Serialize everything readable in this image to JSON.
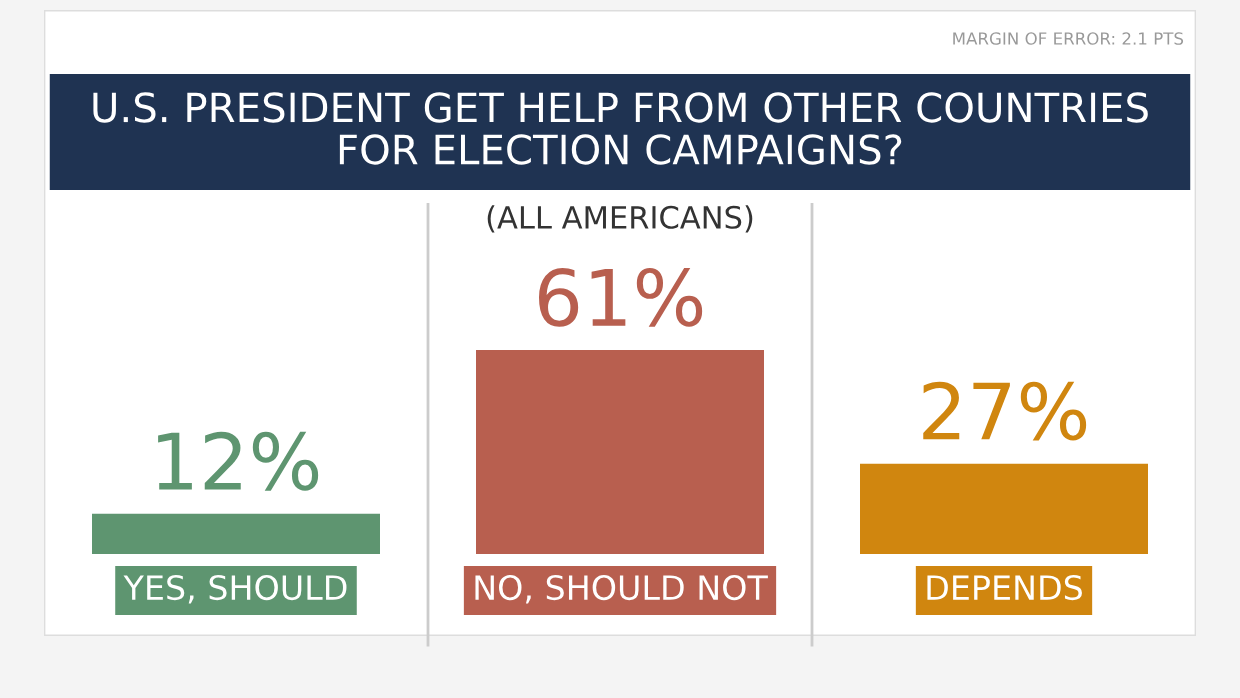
{
  "chart_data": {
    "type": "bar",
    "title": "U.S. PRESIDENT GET HELP FROM OTHER COUNTRIES\nFOR ELECTION CAMPAIGNS?",
    "subtitle": "(ALL AMERICANS)",
    "annotations": [
      "MARGIN OF ERROR: 2.1 PTS"
    ],
    "categories": [
      "YES, SHOULD",
      "NO, SHOULD NOT",
      "DEPENDS"
    ],
    "values": [
      12,
      61,
      27
    ],
    "colors": [
      "#5e9570",
      "#b85f4f",
      "#d0860f"
    ],
    "value_labels": [
      "12%",
      "61%",
      "27%"
    ]
  }
}
